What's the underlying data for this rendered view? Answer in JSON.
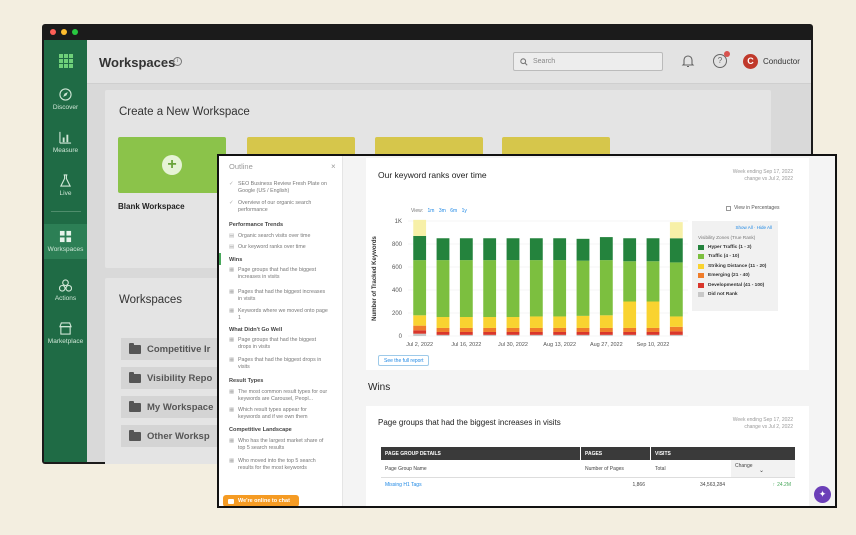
{
  "colors": {
    "sidebar": "#1f6b45",
    "accent_green": "#8bc34a",
    "tile_yellow": "#d6c64b",
    "link_blue": "#1e88e5",
    "chat_orange": "#f59b23",
    "avatar_red": "#c0392b",
    "fab_purple": "#6b3fb8"
  },
  "back_window": {
    "sidebar": {
      "items": [
        {
          "label": "Discover",
          "icon": "compass-icon"
        },
        {
          "label": "Measure",
          "icon": "bar-chart-icon"
        },
        {
          "label": "Live",
          "icon": "flask-icon"
        },
        {
          "label": "Workspaces",
          "icon": "grid-icon"
        },
        {
          "label": "Actions",
          "icon": "actions-icon"
        },
        {
          "label": "Marketplace",
          "icon": "store-icon"
        }
      ]
    },
    "header": {
      "title": "Workspaces",
      "info_icon": "i",
      "search_placeholder": "Search",
      "help_icon": "?",
      "avatar_letter": "C",
      "account_name": "Conductor"
    },
    "create": {
      "title": "Create a New Workspace",
      "blank_label": "Blank Workspace",
      "plus": "+"
    },
    "workspaces": {
      "title": "Workspaces",
      "folders": [
        "Competitive Ir",
        "Visibility Repo",
        "My Workspace",
        "Other Worksp"
      ]
    }
  },
  "outline": {
    "title": "Outline",
    "close": "×",
    "items": [
      {
        "type": "check",
        "text": "SEO Business Review Fresh Plate on Google (US / English)"
      },
      {
        "type": "check",
        "text": "Overview of our organic search performance"
      },
      {
        "type": "head",
        "text": "Performance Trends"
      },
      {
        "type": "chart",
        "text": "Organic search visits over time"
      },
      {
        "type": "chart",
        "text": "Our keyword ranks over time"
      },
      {
        "type": "head",
        "text": "Wins"
      },
      {
        "type": "table",
        "text": "Page groups that had the biggest increases in visits"
      },
      {
        "type": "table",
        "text": "Pages that had the biggest increases in visits"
      },
      {
        "type": "table",
        "text": "Keywords where we moved onto page 1"
      },
      {
        "type": "head",
        "text": "What Didn't Go Well"
      },
      {
        "type": "table",
        "text": "Page groups that had the biggest drops in visits"
      },
      {
        "type": "table",
        "text": "Pages that had the biggest drops in visits"
      },
      {
        "type": "head",
        "text": "Result Types"
      },
      {
        "type": "table",
        "text": "The most common result types for our keywords are Carousel, Peopl..."
      },
      {
        "type": "table",
        "text": "Which result types appear for keywords and if we own them"
      },
      {
        "type": "head",
        "text": "Competitive Landscape"
      },
      {
        "type": "table",
        "text": "Who has the largest market share of top 5 search results"
      },
      {
        "type": "table",
        "text": "Who moved into the top 5 search results for the most keywords"
      }
    ],
    "chat_label": "We're online to chat"
  },
  "keyword_card": {
    "title": "Our keyword ranks over time",
    "week_line1": "Week ending Sep 17, 2022",
    "week_line2": "change vs Jul 2, 2022",
    "view_label": "View:",
    "view_options": [
      "1m",
      "3m",
      "6m",
      "1y"
    ],
    "percent_toggle": "View in Percentages",
    "legend_show_all": "Show All",
    "legend_separator": "·",
    "legend_hide_all": "Hide All",
    "legend_title": "Visibility Zones (True Rank)",
    "full_report": "See the full report"
  },
  "chart_data": {
    "type": "bar",
    "stacked": true,
    "title": "Our keyword ranks over time",
    "ylabel": "Number of Tracked Keywords",
    "xlabel": "",
    "ylim": [
      0,
      1000
    ],
    "yticks": [
      "0",
      "200",
      "400",
      "600",
      "800",
      "1K"
    ],
    "x_tick_labels": [
      "Jul 2, 2022",
      "Jul 16, 2022",
      "Jul 30, 2022",
      "Aug 13, 2022",
      "Aug 27, 2022",
      "Sep 10, 2022"
    ],
    "categories": [
      "Jul 2",
      "Jul 9",
      "Jul 16",
      "Jul 23",
      "Jul 30",
      "Aug 6",
      "Aug 13",
      "Aug 20",
      "Aug 27",
      "Sep 3",
      "Sep 10",
      "Sep 17"
    ],
    "series": [
      {
        "name": "Did not Rank",
        "color": "#c8c8c8",
        "values": [
          20,
          10,
          10,
          10,
          10,
          10,
          10,
          10,
          10,
          10,
          10,
          10
        ]
      },
      {
        "name": "Developmental (41 - 100)",
        "color": "#d9362b",
        "values": [
          30,
          25,
          25,
          25,
          25,
          25,
          25,
          25,
          25,
          25,
          25,
          30
        ]
      },
      {
        "name": "Emerging (21 - 40)",
        "color": "#f07d2a",
        "values": [
          40,
          35,
          35,
          35,
          35,
          35,
          35,
          35,
          35,
          35,
          35,
          40
        ]
      },
      {
        "name": "Striking Distance (11 - 20)",
        "color": "#f9d330",
        "values": [
          90,
          95,
          95,
          95,
          95,
          100,
          100,
          105,
          110,
          230,
          230,
          90
        ]
      },
      {
        "name": "Traffic (4 - 10)",
        "color": "#7cbf3f",
        "values": [
          480,
          495,
          495,
          495,
          495,
          490,
          490,
          480,
          480,
          350,
          350,
          470
        ]
      },
      {
        "name": "Hyper Traffic (1 - 3)",
        "color": "#24833d",
        "values": [
          210,
          190,
          190,
          190,
          190,
          190,
          190,
          190,
          200,
          200,
          200,
          210
        ]
      },
      {
        "name": "",
        "color": "#f7f0a8",
        "values": [
          140,
          0,
          0,
          0,
          0,
          0,
          0,
          0,
          0,
          0,
          0,
          140
        ]
      }
    ],
    "legend": [
      "Hyper Traffic (1 - 3)",
      "Traffic (4 - 10)",
      "Striking Distance (11 - 20)",
      "Emerging (21 - 40)",
      "Developmental (41 - 100)",
      "Did not Rank"
    ],
    "legend_position": "right"
  },
  "wins": {
    "heading": "Wins",
    "card_title": "Page groups that had the biggest increases in visits",
    "week_line1": "Week ending Sep 17, 2022",
    "week_line2": "change vs Jul 2, 2022",
    "headers": [
      "PAGE GROUP DETAILS",
      "PAGES",
      "VISITS"
    ],
    "subheaders": [
      "Page Group Name",
      "Number of Pages",
      "Total",
      "Change"
    ],
    "sort_icon": "⌄",
    "rows": [
      {
        "name": "Missing H1 Tags",
        "pages": "1,866",
        "total": "34,563,284",
        "change": "24.2M"
      }
    ]
  },
  "fab_icon": "magic-wand-icon"
}
